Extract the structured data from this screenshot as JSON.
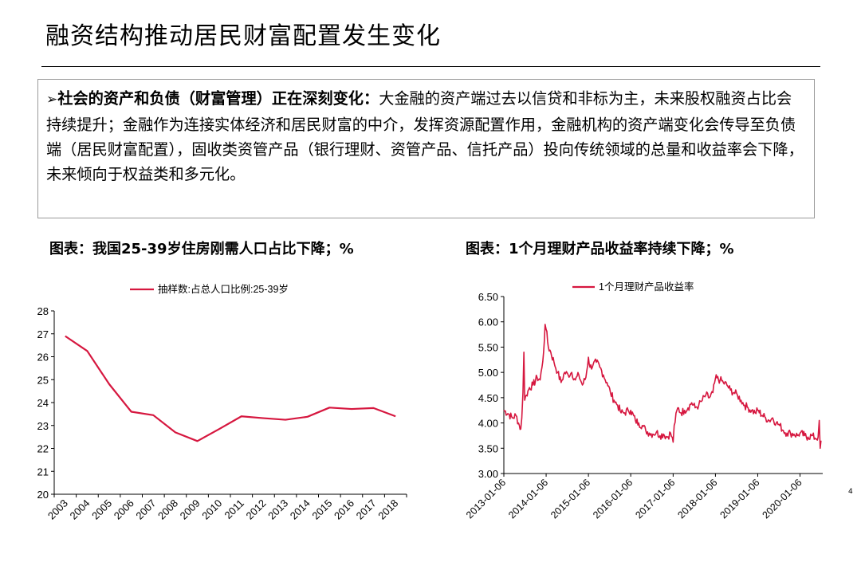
{
  "slide": {
    "title": "融资结构推动居民财富配置发生变化",
    "page_number": "4"
  },
  "summary": {
    "bullet": "➢",
    "lead": "社会的资产和负债（财富管理）正在深刻变化：",
    "body": "大金融的资产端过去以信贷和非标为主，未来股权融资占比会持续提升；金融作为连接实体经济和居民财富的中介，发挥资源配置作用，金融机构的资产端变化会传导至负债端（居民财富配置），固收类资管产品（银行理财、资管产品、信托产品）投向传统领域的总量和收益率会下降，未来倾向于权益类和多元化。"
  },
  "captions": {
    "left": "图表：我国25-39岁住房刚需人口占比下降；%",
    "right": "图表：1个月理财产品收益率持续下降；%"
  },
  "colors": {
    "series": "#d6173f",
    "axis": "#000000"
  },
  "chart_data": [
    {
      "type": "line",
      "title": "",
      "legend": "抽样数:占总人口比例:25-39岁",
      "legend_position": "top",
      "x": [
        "2003",
        "2004",
        "2005",
        "2006",
        "2007",
        "2008",
        "2009",
        "2010",
        "2011",
        "2012",
        "2013",
        "2014",
        "2015",
        "2016",
        "2017",
        "2018"
      ],
      "series": [
        {
          "name": "抽样数:占总人口比例:25-39岁",
          "values": [
            26.9,
            26.25,
            24.8,
            23.6,
            23.45,
            22.7,
            22.32,
            22.85,
            23.4,
            23.32,
            23.25,
            23.38,
            23.78,
            23.72,
            23.76,
            23.4
          ]
        }
      ],
      "ylim": [
        20,
        28
      ],
      "yticks": [
        "20",
        "21",
        "22",
        "23",
        "24",
        "25",
        "26",
        "27",
        "28"
      ],
      "grid": false
    },
    {
      "type": "line",
      "title": "",
      "legend": "1个月理财产品收益率",
      "legend_position": "top",
      "xticks": [
        "2013-01-06",
        "2014-01-06",
        "2015-01-06",
        "2016-01-06",
        "2017-01-06",
        "2018-01-06",
        "2019-01-06",
        "2020-01-06"
      ],
      "series": [
        {
          "name": "1个月理财产品收益率",
          "points": [
            [
              "2013-01-06",
              4.25
            ],
            [
              "2013-02-15",
              4.18
            ],
            [
              "2013-03-20",
              4.1
            ],
            [
              "2013-04-20",
              4.15
            ],
            [
              "2013-05-20",
              3.95
            ],
            [
              "2013-06-01",
              3.88
            ],
            [
              "2013-06-10",
              4.1
            ],
            [
              "2013-06-20",
              4.6
            ],
            [
              "2013-06-28",
              5.4
            ],
            [
              "2013-07-05",
              4.45
            ],
            [
              "2013-07-20",
              4.55
            ],
            [
              "2013-08-15",
              4.7
            ],
            [
              "2013-09-15",
              4.75
            ],
            [
              "2013-10-20",
              4.9
            ],
            [
              "2013-11-15",
              4.85
            ],
            [
              "2013-12-01",
              5.1
            ],
            [
              "2013-12-15",
              5.4
            ],
            [
              "2013-12-28",
              5.95
            ],
            [
              "2014-01-06",
              5.85
            ],
            [
              "2014-01-25",
              5.5
            ],
            [
              "2014-02-15",
              5.4
            ],
            [
              "2014-03-15",
              5.2
            ],
            [
              "2014-04-15",
              5.0
            ],
            [
              "2014-05-15",
              4.8
            ],
            [
              "2014-06-15",
              5.0
            ],
            [
              "2014-07-15",
              4.95
            ],
            [
              "2014-08-15",
              5.0
            ],
            [
              "2014-09-15",
              4.85
            ],
            [
              "2014-10-15",
              4.95
            ],
            [
              "2014-11-15",
              4.75
            ],
            [
              "2014-12-15",
              4.9
            ],
            [
              "2015-01-06",
              5.3
            ],
            [
              "2015-01-20",
              5.1
            ],
            [
              "2015-02-15",
              5.15
            ],
            [
              "2015-03-15",
              5.2
            ],
            [
              "2015-04-15",
              5.1
            ],
            [
              "2015-05-15",
              4.95
            ],
            [
              "2015-06-15",
              4.8
            ],
            [
              "2015-07-15",
              4.6
            ],
            [
              "2015-08-15",
              4.45
            ],
            [
              "2015-09-15",
              4.35
            ],
            [
              "2015-10-15",
              4.2
            ],
            [
              "2015-11-15",
              4.2
            ],
            [
              "2015-12-15",
              4.25
            ],
            [
              "2016-01-06",
              4.25
            ],
            [
              "2016-02-15",
              4.05
            ],
            [
              "2016-03-15",
              4.0
            ],
            [
              "2016-04-15",
              3.95
            ],
            [
              "2016-05-15",
              3.85
            ],
            [
              "2016-06-15",
              3.8
            ],
            [
              "2016-07-15",
              3.78
            ],
            [
              "2016-08-15",
              3.82
            ],
            [
              "2016-09-15",
              3.75
            ],
            [
              "2016-10-15",
              3.78
            ],
            [
              "2016-11-15",
              3.72
            ],
            [
              "2016-12-15",
              3.8
            ],
            [
              "2017-01-06",
              3.62
            ],
            [
              "2017-01-15",
              3.95
            ],
            [
              "2017-02-15",
              4.3
            ],
            [
              "2017-03-15",
              4.2
            ],
            [
              "2017-04-15",
              4.25
            ],
            [
              "2017-05-15",
              4.3
            ],
            [
              "2017-06-15",
              4.4
            ],
            [
              "2017-07-15",
              4.3
            ],
            [
              "2017-08-15",
              4.35
            ],
            [
              "2017-09-15",
              4.45
            ],
            [
              "2017-10-15",
              4.55
            ],
            [
              "2017-11-15",
              4.5
            ],
            [
              "2017-12-15",
              4.6
            ],
            [
              "2018-01-06",
              4.88
            ],
            [
              "2018-02-15",
              4.85
            ],
            [
              "2018-03-15",
              4.8
            ],
            [
              "2018-04-15",
              4.75
            ],
            [
              "2018-05-15",
              4.65
            ],
            [
              "2018-06-15",
              4.6
            ],
            [
              "2018-07-15",
              4.55
            ],
            [
              "2018-08-15",
              4.45
            ],
            [
              "2018-09-15",
              4.35
            ],
            [
              "2018-10-15",
              4.3
            ],
            [
              "2018-11-15",
              4.25
            ],
            [
              "2018-12-15",
              4.2
            ],
            [
              "2019-01-06",
              4.25
            ],
            [
              "2019-02-15",
              4.15
            ],
            [
              "2019-03-15",
              4.1
            ],
            [
              "2019-04-15",
              4.05
            ],
            [
              "2019-05-15",
              4.1
            ],
            [
              "2019-06-15",
              4.0
            ],
            [
              "2019-07-15",
              3.95
            ],
            [
              "2019-08-15",
              3.85
            ],
            [
              "2019-09-15",
              3.8
            ],
            [
              "2019-10-15",
              3.8
            ],
            [
              "2019-11-15",
              3.78
            ],
            [
              "2019-12-15",
              3.75
            ],
            [
              "2020-01-06",
              3.8
            ],
            [
              "2020-02-15",
              3.75
            ],
            [
              "2020-03-15",
              3.72
            ],
            [
              "2020-04-15",
              3.75
            ],
            [
              "2020-05-15",
              3.7
            ],
            [
              "2020-06-10",
              3.72
            ],
            [
              "2020-06-20",
              4.05
            ],
            [
              "2020-06-28",
              3.5
            ],
            [
              "2020-07-05",
              3.65
            ]
          ]
        }
      ],
      "ylim": [
        3.0,
        6.5
      ],
      "yticks": [
        "3.00",
        "3.50",
        "4.00",
        "4.50",
        "5.00",
        "5.50",
        "6.00",
        "6.50"
      ],
      "grid": false
    }
  ]
}
